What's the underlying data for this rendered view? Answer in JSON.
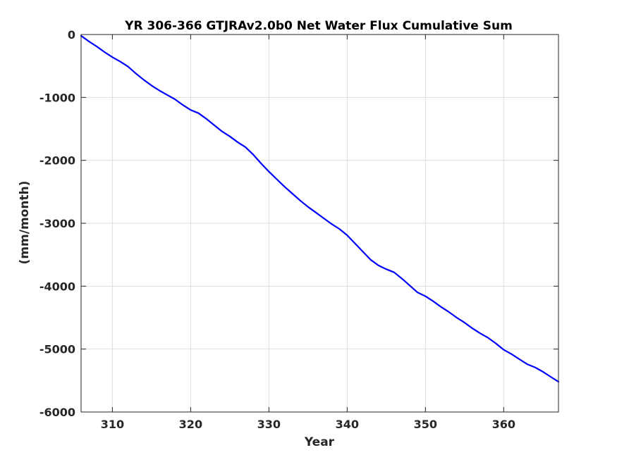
{
  "chart_data": {
    "type": "line",
    "title": "YR 306-366 GTJRAv2.0b0 Net Water Flux Cumulative Sum",
    "xlabel": "Year",
    "ylabel": "(mm/month)",
    "xlim": [
      306,
      367
    ],
    "ylim": [
      -6000,
      0
    ],
    "xticks": [
      310,
      320,
      330,
      340,
      350,
      360
    ],
    "xtick_labels": [
      "310",
      "320",
      "330",
      "340",
      "350",
      "360"
    ],
    "yticks": [
      0,
      -1000,
      -2000,
      -3000,
      -4000,
      -5000,
      -6000
    ],
    "ytick_labels": [
      "0",
      "-1000",
      "-2000",
      "-3000",
      "-4000",
      "-5000",
      "-6000"
    ],
    "grid": true,
    "series": [
      {
        "color": "#0000ff",
        "x": [
          306,
          307,
          308,
          309,
          310,
          311,
          312,
          313,
          314,
          315,
          316,
          317,
          318,
          319,
          320,
          321,
          322,
          323,
          324,
          325,
          326,
          327,
          328,
          329,
          330,
          331,
          332,
          333,
          334,
          335,
          336,
          337,
          338,
          339,
          340,
          341,
          342,
          343,
          344,
          345,
          346,
          347,
          348,
          349,
          350,
          351,
          352,
          353,
          354,
          355,
          356,
          357,
          358,
          359,
          360,
          361,
          362,
          363,
          364,
          365,
          366,
          367
        ],
        "y": [
          -20,
          -110,
          -190,
          -280,
          -360,
          -430,
          -510,
          -620,
          -720,
          -810,
          -890,
          -960,
          -1030,
          -1120,
          -1200,
          -1250,
          -1340,
          -1440,
          -1540,
          -1620,
          -1710,
          -1790,
          -1910,
          -2050,
          -2180,
          -2300,
          -2420,
          -2530,
          -2640,
          -2740,
          -2830,
          -2920,
          -3010,
          -3090,
          -3190,
          -3320,
          -3450,
          -3580,
          -3670,
          -3730,
          -3780,
          -3880,
          -3990,
          -4100,
          -4160,
          -4240,
          -4330,
          -4410,
          -4500,
          -4580,
          -4670,
          -4750,
          -4820,
          -4910,
          -5010,
          -5080,
          -5160,
          -5240,
          -5290,
          -5360,
          -5440,
          -5520
        ]
      }
    ]
  }
}
